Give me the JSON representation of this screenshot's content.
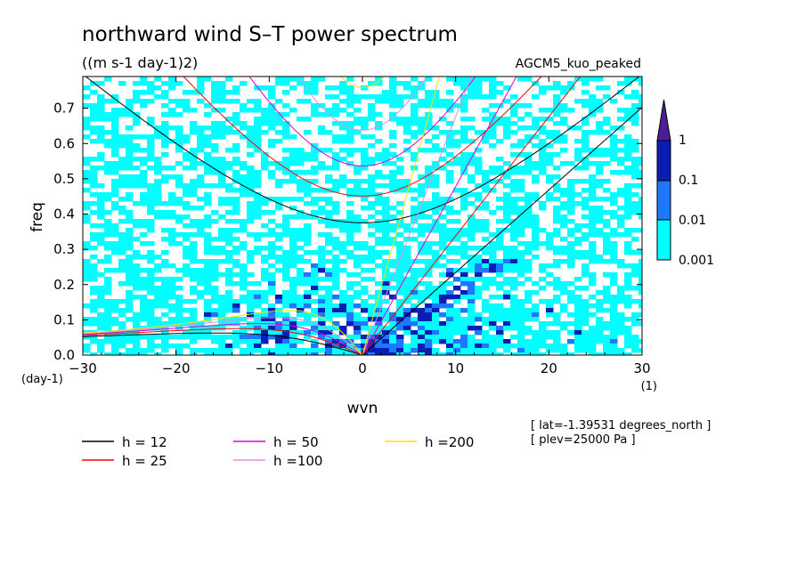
{
  "chart_data": {
    "type": "heatmap",
    "title": "northward wind S–T power spectrum",
    "subtitle": "((m s-1 day-1)2)",
    "dataset_label": "AGCM5_kuo_peaked",
    "xlabel": "wvn",
    "ylabel": "freq",
    "x_unit": "(1)",
    "y_unit": "(day-1)",
    "xlim": [
      -30,
      30
    ],
    "ylim": [
      0,
      0.79
    ],
    "x_ticks": [
      -30,
      -20,
      -10,
      0,
      10,
      20,
      30
    ],
    "x_tick_labels": [
      "−30",
      "−20",
      "−10",
      "0",
      "10",
      "20",
      "30"
    ],
    "y_ticks": [
      0.0,
      0.1,
      0.2,
      0.3,
      0.4,
      0.5,
      0.6,
      0.7
    ],
    "y_tick_labels": [
      "0.0",
      "0.1",
      "0.2",
      "0.3",
      "0.4",
      "0.5",
      "0.6",
      "0.7"
    ],
    "colorbar": {
      "levels": [
        0.001,
        0.01,
        0.1,
        1
      ],
      "labels": [
        "0.001",
        "0.01",
        "0.1",
        "1"
      ],
      "colors": [
        "#00ffff",
        "#1e78ff",
        "#0a1eb4",
        "#4b1e96"
      ]
    },
    "dispersion_curves": [
      {
        "name": "h = 12",
        "equivalent_depth_m": 12,
        "color": "#000000"
      },
      {
        "name": "h = 25",
        "equivalent_depth_m": 25,
        "color": "#ff0000"
      },
      {
        "name": "h = 50",
        "equivalent_depth_m": 50,
        "color": "#e000d8"
      },
      {
        "name": "h =100",
        "equivalent_depth_m": 100,
        "color": "#e090e0"
      },
      {
        "name": "h =200",
        "equivalent_depth_m": 200,
        "color": "#ffe000"
      }
    ],
    "annotations": [
      "[ lat=-1.39531 degrees_north ]",
      "[ plev=25000 Pa ]"
    ]
  }
}
